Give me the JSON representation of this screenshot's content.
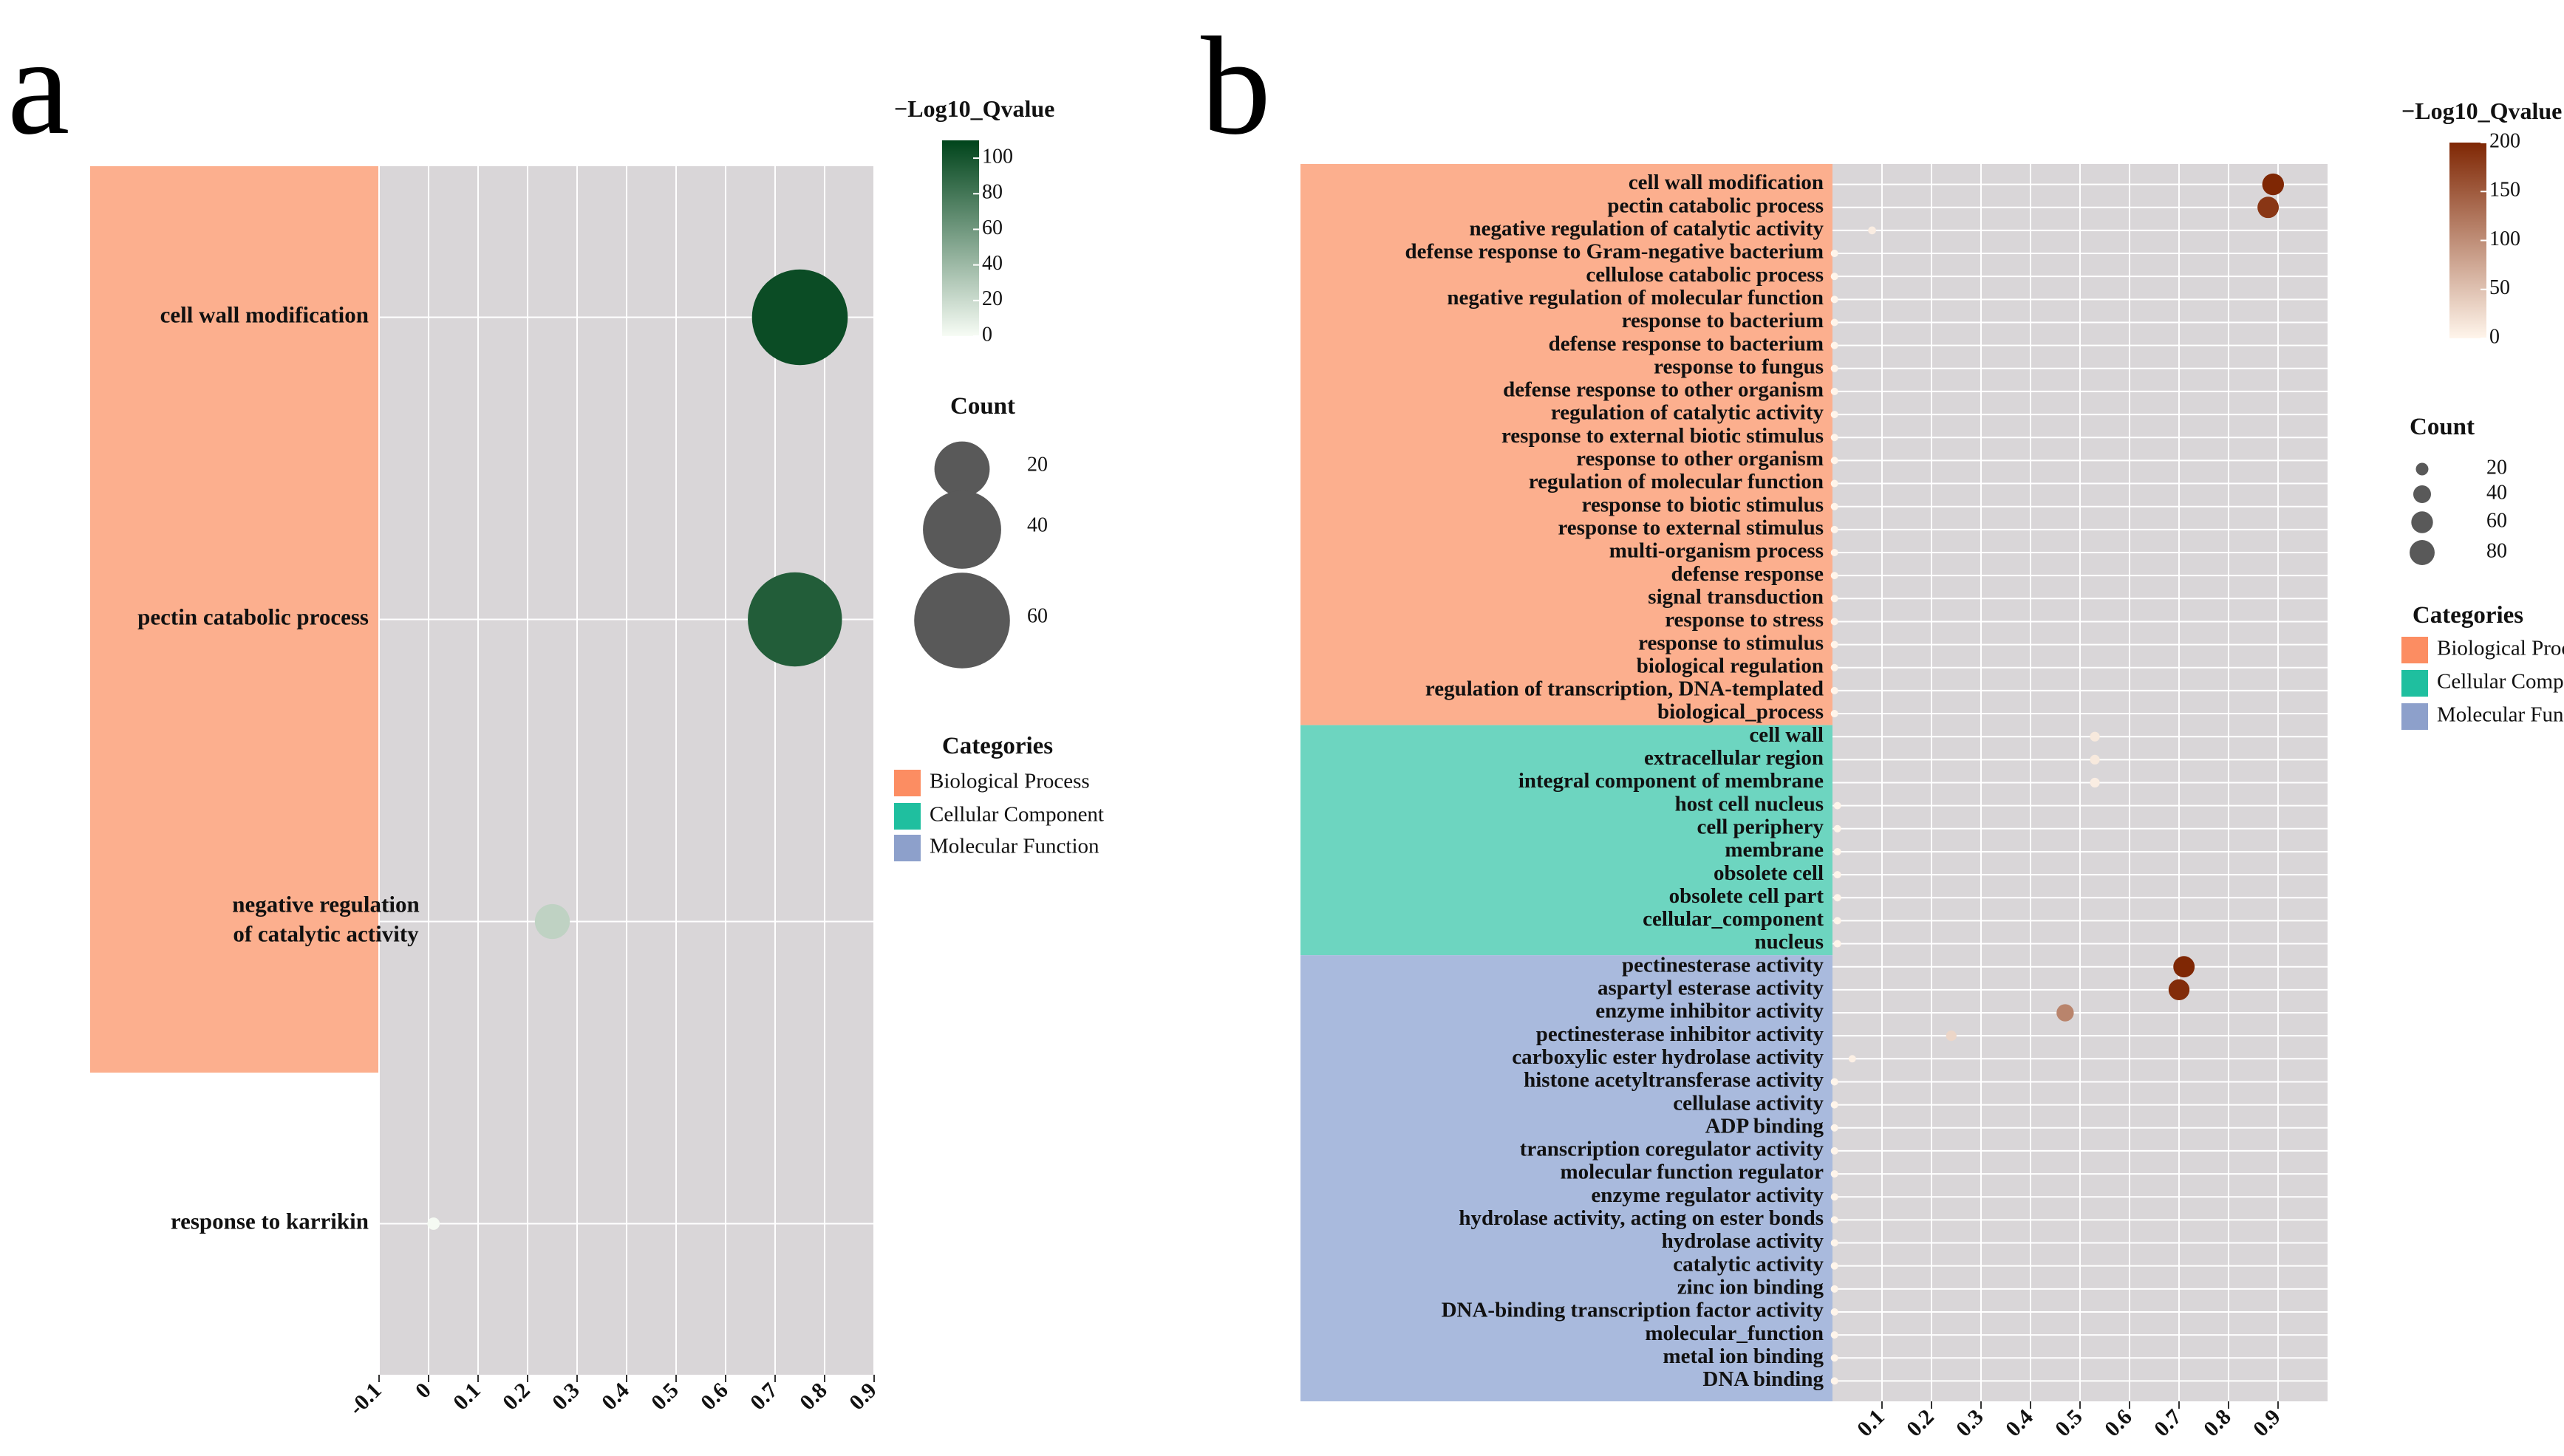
{
  "figure": {
    "panel_labels": [
      "a",
      "b"
    ]
  },
  "chart_data": [
    {
      "panel": "a",
      "type": "scatter",
      "title": "",
      "xlabel": "",
      "ylabel": "",
      "xlim": [
        -0.1,
        0.9
      ],
      "xticks": [
        -0.1,
        0,
        0.1,
        0.2,
        0.3,
        0.4,
        0.5,
        0.6,
        0.7,
        0.8,
        0.9
      ],
      "xtick_labels": [
        "-0.1",
        "0",
        "0.1",
        "0.2",
        "0.3",
        "0.4",
        "0.5",
        "0.6",
        "0.7",
        "0.8",
        "0.9"
      ],
      "grid": true,
      "color_scale": {
        "title": "−Log10_Qvalue",
        "min": 0,
        "max": 110,
        "ticks": [
          0,
          20,
          40,
          60,
          80,
          100
        ],
        "tick_labels": [
          "0",
          "20",
          "40",
          "60",
          "80",
          "100"
        ],
        "low_color": "#f7fcf5",
        "high_color": "#00441b"
      },
      "size_legend": {
        "title": "Count",
        "values": [
          20,
          40,
          60
        ],
        "labels": [
          "20",
          "40",
          "60"
        ],
        "max_value": 70
      },
      "category_legend": {
        "title": "Categories",
        "items": [
          {
            "label": "Biological Process",
            "color": "#fc8d62"
          },
          {
            "label": "Cellular Component",
            "color": "#1fbf9f"
          },
          {
            "label": "Molecular Function",
            "color": "#8da0cb"
          }
        ]
      },
      "category_bands": [
        {
          "category": "Biological Process",
          "color": "#fcaf8e",
          "from": 0,
          "to": 3
        }
      ],
      "points": [
        {
          "term": "cell wall modification",
          "label_lines": [
            "cell wall modification"
          ],
          "x": 0.75,
          "qvalue": 105,
          "count": 60
        },
        {
          "term": "pectin catabolic process",
          "label_lines": [
            "pectin catabolic process"
          ],
          "x": 0.74,
          "qvalue": 95,
          "count": 58
        },
        {
          "term": "negative regulation of catalytic activity",
          "label_lines": [
            "negative regulation",
            "of catalytic activity"
          ],
          "x": 0.25,
          "qvalue": 25,
          "count": 8
        },
        {
          "term": "response to karrikin",
          "label_lines": [
            "response to karrikin"
          ],
          "x": 0.01,
          "qvalue": 1,
          "count": 1
        }
      ]
    },
    {
      "panel": "b",
      "type": "scatter",
      "title": "",
      "xlabel": "",
      "ylabel": "",
      "xlim": [
        0.0,
        1.0
      ],
      "xticks": [
        0.1,
        0.2,
        0.3,
        0.4,
        0.5,
        0.6,
        0.7,
        0.8,
        0.9
      ],
      "xtick_labels": [
        "0.1",
        "0.2",
        "0.3",
        "0.4",
        "0.5",
        "0.6",
        "0.7",
        "0.8",
        "0.9"
      ],
      "grid": true,
      "color_scale": {
        "title": "−Log10_Qvalue",
        "min": 0,
        "max": 200,
        "ticks": [
          0,
          50,
          100,
          150,
          200
        ],
        "tick_labels": [
          "0",
          "50",
          "100",
          "150",
          "200"
        ],
        "low_color": "#fff5eb",
        "high_color": "#7f2704"
      },
      "size_legend": {
        "title": "Count",
        "values": [
          20,
          40,
          60,
          80
        ],
        "labels": [
          "20",
          "40",
          "60",
          "80"
        ],
        "max_value": 90
      },
      "category_legend": {
        "title": "Categories",
        "items": [
          {
            "label": "Biological Process",
            "color": "#fc8d62"
          },
          {
            "label": "Cellular Component",
            "color": "#1fbf9f"
          },
          {
            "label": "Molecular Function",
            "color": "#8da0cb"
          }
        ]
      },
      "category_bands": [
        {
          "category": "Biological Process",
          "color": "#fcaf8e",
          "from": 0,
          "to": 24
        },
        {
          "category": "Cellular Component",
          "color": "#6dd5c0",
          "from": 24,
          "to": 34
        },
        {
          "category": "Molecular Function",
          "color": "#a9badd",
          "from": 34,
          "to": 53
        }
      ],
      "points": [
        {
          "term": "cell wall modification",
          "x": 0.89,
          "qvalue": 200,
          "count": 60
        },
        {
          "term": "pectin catabolic process",
          "x": 0.88,
          "qvalue": 185,
          "count": 58
        },
        {
          "term": "negative regulation of catalytic activity",
          "x": 0.08,
          "qvalue": 8,
          "count": 8
        },
        {
          "term": "defense response to Gram-negative bacterium",
          "x": 0.004,
          "qvalue": 0,
          "count": 1
        },
        {
          "term": "cellulose catabolic process",
          "x": 0.004,
          "qvalue": 0,
          "count": 1
        },
        {
          "term": "negative regulation of molecular function",
          "x": 0.004,
          "qvalue": 0,
          "count": 1
        },
        {
          "term": "response to bacterium",
          "x": 0.004,
          "qvalue": 0,
          "count": 1
        },
        {
          "term": "defense response to bacterium",
          "x": 0.004,
          "qvalue": 0,
          "count": 1
        },
        {
          "term": "response to fungus",
          "x": 0.004,
          "qvalue": 0,
          "count": 1
        },
        {
          "term": "defense response to other organism",
          "x": 0.004,
          "qvalue": 0,
          "count": 1
        },
        {
          "term": "regulation of catalytic activity",
          "x": 0.004,
          "qvalue": 0,
          "count": 1
        },
        {
          "term": "response to external biotic stimulus",
          "x": 0.004,
          "qvalue": 0,
          "count": 1
        },
        {
          "term": "response to other organism",
          "x": 0.004,
          "qvalue": 0,
          "count": 1
        },
        {
          "term": "regulation of molecular function",
          "x": 0.004,
          "qvalue": 0,
          "count": 1
        },
        {
          "term": "response to biotic stimulus",
          "x": 0.004,
          "qvalue": 0,
          "count": 1
        },
        {
          "term": "response to external stimulus",
          "x": 0.004,
          "qvalue": 0,
          "count": 1
        },
        {
          "term": "multi-organism process",
          "x": 0.004,
          "qvalue": 0,
          "count": 1
        },
        {
          "term": "defense response",
          "x": 0.004,
          "qvalue": 0,
          "count": 1
        },
        {
          "term": "signal transduction",
          "x": 0.004,
          "qvalue": 0,
          "count": 1
        },
        {
          "term": "response to stress",
          "x": 0.004,
          "qvalue": 0,
          "count": 1
        },
        {
          "term": "response to stimulus",
          "x": 0.004,
          "qvalue": 0,
          "count": 1
        },
        {
          "term": "biological regulation",
          "x": 0.004,
          "qvalue": 0,
          "count": 1
        },
        {
          "term": "regulation of transcription, DNA-templated",
          "x": 0.004,
          "qvalue": 0,
          "count": 1
        },
        {
          "term": "biological_process",
          "x": 0.004,
          "qvalue": 0,
          "count": 1
        },
        {
          "term": "cell wall",
          "x": 0.53,
          "qvalue": 12,
          "count": 12
        },
        {
          "term": "extracellular region",
          "x": 0.53,
          "qvalue": 12,
          "count": 12
        },
        {
          "term": "integral component of membrane",
          "x": 0.53,
          "qvalue": 8,
          "count": 12
        },
        {
          "term": "host cell nucleus",
          "x": 0.01,
          "qvalue": 0,
          "count": 2
        },
        {
          "term": "cell periphery",
          "x": 0.01,
          "qvalue": 0,
          "count": 2
        },
        {
          "term": "membrane",
          "x": 0.01,
          "qvalue": 0,
          "count": 2
        },
        {
          "term": "obsolete cell",
          "x": 0.01,
          "qvalue": 0,
          "count": 2
        },
        {
          "term": "obsolete cell part",
          "x": 0.01,
          "qvalue": 0,
          "count": 2
        },
        {
          "term": "cellular_component",
          "x": 0.01,
          "qvalue": 0,
          "count": 2
        },
        {
          "term": "nucleus",
          "x": 0.01,
          "qvalue": 0,
          "count": 2
        },
        {
          "term": "pectinesterase activity",
          "x": 0.71,
          "qvalue": 200,
          "count": 58
        },
        {
          "term": "aspartyl esterase activity",
          "x": 0.7,
          "qvalue": 195,
          "count": 56
        },
        {
          "term": "enzyme inhibitor activity",
          "x": 0.47,
          "qvalue": 110,
          "count": 38
        },
        {
          "term": "pectinesterase inhibitor activity",
          "x": 0.24,
          "qvalue": 30,
          "count": 14
        },
        {
          "term": "carboxylic ester hydrolase activity",
          "x": 0.04,
          "qvalue": 5,
          "count": 5
        },
        {
          "term": "histone acetyltransferase activity",
          "x": 0.004,
          "qvalue": 0,
          "count": 1
        },
        {
          "term": "cellulase activity",
          "x": 0.004,
          "qvalue": 0,
          "count": 1
        },
        {
          "term": "ADP binding",
          "x": 0.004,
          "qvalue": 0,
          "count": 1
        },
        {
          "term": "transcription coregulator activity",
          "x": 0.004,
          "qvalue": 0,
          "count": 1
        },
        {
          "term": "molecular function regulator",
          "x": 0.004,
          "qvalue": 0,
          "count": 1
        },
        {
          "term": "enzyme regulator activity",
          "x": 0.004,
          "qvalue": 0,
          "count": 1
        },
        {
          "term": "hydrolase activity, acting on ester bonds",
          "x": 0.004,
          "qvalue": 0,
          "count": 1
        },
        {
          "term": "hydrolase activity",
          "x": 0.004,
          "qvalue": 0,
          "count": 1
        },
        {
          "term": "catalytic activity",
          "x": 0.004,
          "qvalue": 0,
          "count": 1
        },
        {
          "term": "zinc ion binding",
          "x": 0.004,
          "qvalue": 0,
          "count": 1
        },
        {
          "term": "DNA-binding transcription factor activity",
          "x": 0.004,
          "qvalue": 0,
          "count": 1
        },
        {
          "term": "molecular_function",
          "x": 0.004,
          "qvalue": 0,
          "count": 1
        },
        {
          "term": "metal ion binding",
          "x": 0.004,
          "qvalue": 0,
          "count": 1
        },
        {
          "term": "DNA binding",
          "x": 0.004,
          "qvalue": 0,
          "count": 1
        }
      ]
    }
  ]
}
